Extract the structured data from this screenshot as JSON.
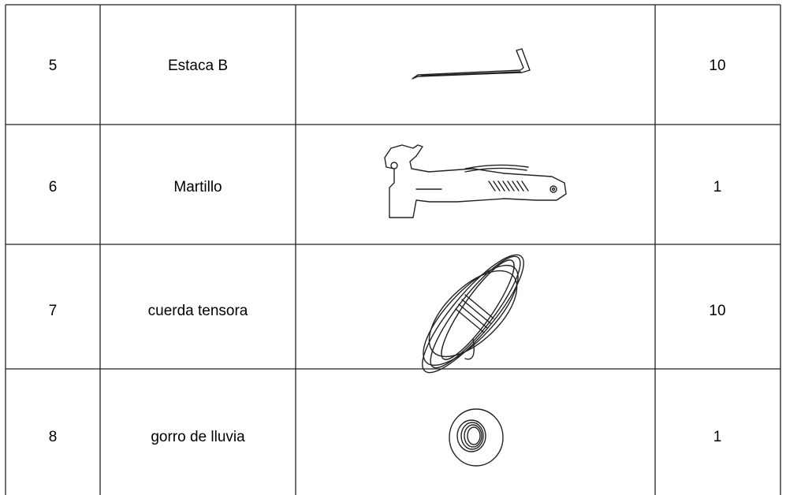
{
  "table": {
    "rows": [
      [
        "5",
        "Estaca B",
        "10"
      ],
      [
        "6",
        "Martillo",
        "1"
      ],
      [
        "7",
        "cuerda tensora",
        "10"
      ],
      [
        "8",
        "gorro de lluvia",
        "1"
      ]
    ]
  }
}
